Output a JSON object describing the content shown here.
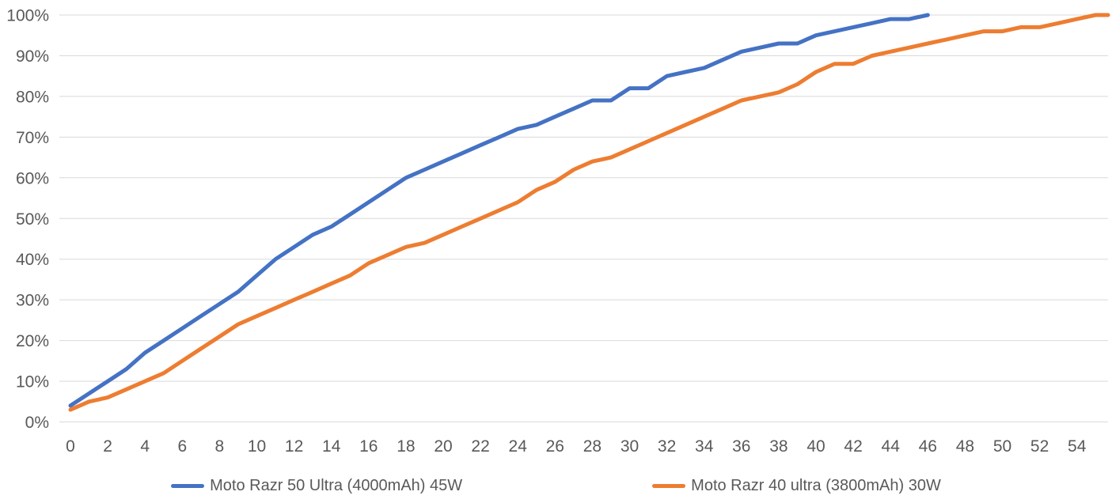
{
  "chart_data": {
    "type": "line",
    "title": "",
    "xlabel": "",
    "ylabel": "",
    "grid": "horizontal",
    "legend_position": "bottom-center",
    "ylim": [
      0,
      100
    ],
    "xlim": [
      0,
      55.6
    ],
    "x_step_per_point": 1,
    "x_tick_labels": [
      "0",
      "2",
      "4",
      "6",
      "8",
      "10",
      "12",
      "14",
      "16",
      "18",
      "20",
      "22",
      "24",
      "26",
      "28",
      "30",
      "32",
      "34",
      "36",
      "38",
      "40",
      "42",
      "44",
      "46",
      "48",
      "50",
      "52",
      "54"
    ],
    "y_tick_labels": [
      "0%",
      "10%",
      "20%",
      "30%",
      "40%",
      "50%",
      "60%",
      "70%",
      "80%",
      "90%",
      "100%"
    ],
    "series": [
      {
        "name": "Moto Razr 50 Ultra (4000mAh) 45W",
        "color": "#4472C4",
        "x_start": 0,
        "values": [
          4,
          7,
          10,
          13,
          17,
          20,
          23,
          26,
          29,
          32,
          36,
          40,
          43,
          46,
          48,
          51,
          54,
          57,
          60,
          62,
          64,
          66,
          68,
          70,
          72,
          73,
          75,
          77,
          79,
          79,
          82,
          82,
          85,
          86,
          87,
          89,
          91,
          92,
          93,
          93,
          95,
          96,
          97,
          98,
          99,
          99,
          100
        ],
        "clipped_at_right": false
      },
      {
        "name": "Moto Razr 40 ultra (3800mAh) 30W",
        "color": "#ED7D31",
        "x_start": 0,
        "values": [
          3,
          5,
          6,
          8,
          10,
          12,
          15,
          18,
          21,
          24,
          26,
          28,
          30,
          32,
          34,
          36,
          39,
          41,
          43,
          44,
          46,
          48,
          50,
          52,
          54,
          57,
          59,
          62,
          64,
          65,
          67,
          69,
          71,
          73,
          75,
          77,
          79,
          80,
          81,
          83,
          86,
          88,
          88,
          90,
          91,
          92,
          93,
          94,
          95,
          96,
          96,
          97,
          97,
          98,
          99,
          100
        ],
        "clipped_at_right": true
      }
    ]
  },
  "colors": {
    "background": "#FFFFFF",
    "gridline": "#D9D9D9",
    "axis_label": "#595959",
    "series_blue": "#4472C4",
    "series_orange": "#ED7D31"
  }
}
